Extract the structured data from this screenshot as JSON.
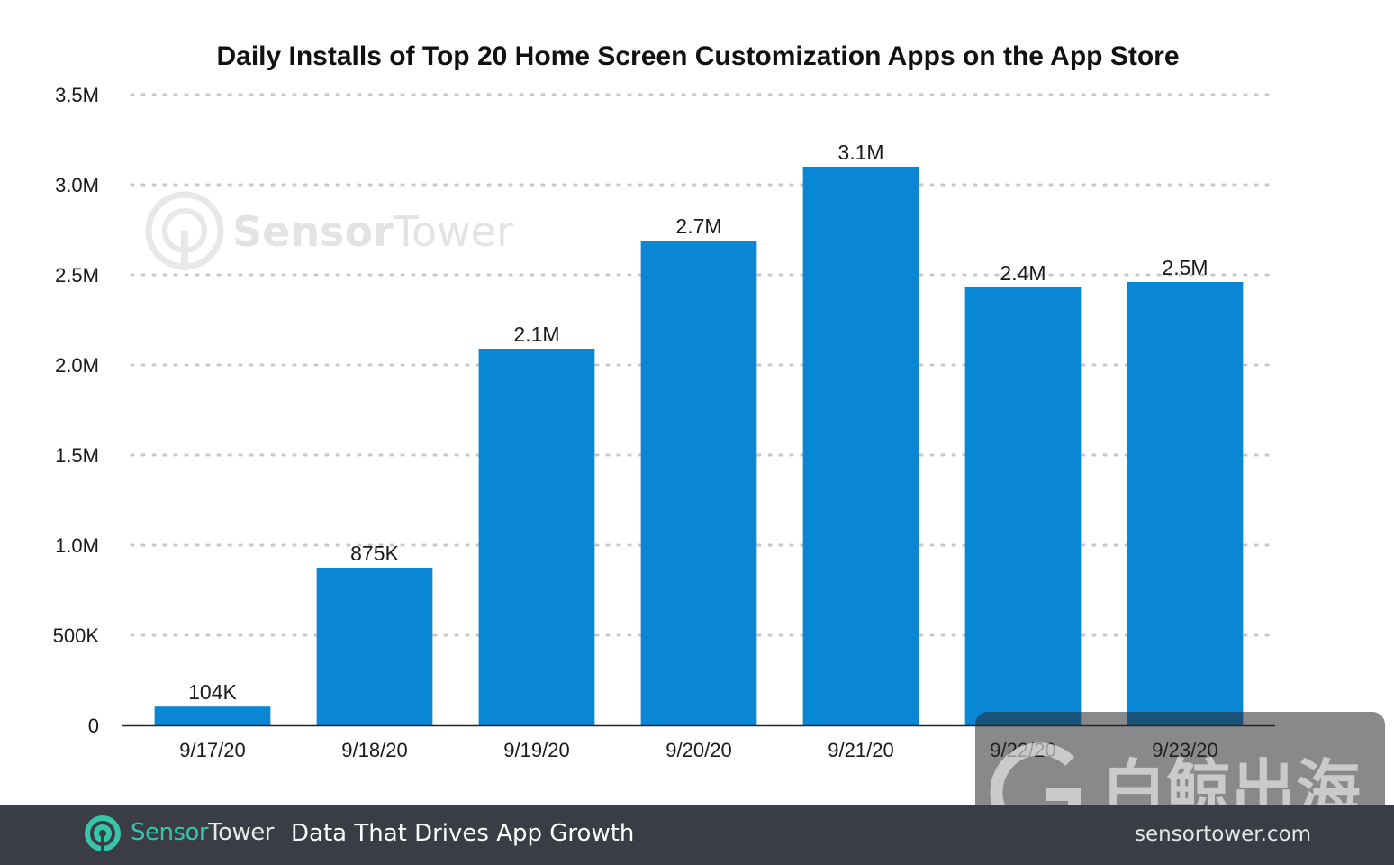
{
  "chart_data": {
    "type": "bar",
    "title": "Daily Installs of Top 20 Home Screen Customization Apps on the App Store",
    "categories": [
      "9/17/20",
      "9/18/20",
      "9/19/20",
      "9/20/20",
      "9/21/20",
      "9/22/20",
      "9/23/20"
    ],
    "values": [
      104000,
      875000,
      2090000,
      2690000,
      3100000,
      2430000,
      2460000
    ],
    "data_labels": [
      "104K",
      "875K",
      "2.1M",
      "2.7M",
      "3.1M",
      "2.4M",
      "2.5M"
    ],
    "ylim": [
      0,
      3500000
    ],
    "y_ticks": [
      {
        "value": 0,
        "label": "0"
      },
      {
        "value": 500000,
        "label": "500K"
      },
      {
        "value": 1000000,
        "label": "1.0M"
      },
      {
        "value": 1500000,
        "label": "1.5M"
      },
      {
        "value": 2000000,
        "label": "2.0M"
      },
      {
        "value": 2500000,
        "label": "2.5M"
      },
      {
        "value": 3000000,
        "label": "3.0M"
      },
      {
        "value": 3500000,
        "label": "3.5M"
      }
    ],
    "grid": true,
    "bar_color": "#0a87d4"
  },
  "watermark": {
    "brand_part1": "Sensor",
    "brand_part2": "Tower"
  },
  "footer": {
    "brand_part1": "Sensor",
    "brand_part2": "Tower",
    "tagline": "Data That Drives App Growth",
    "background": "#3a3d45",
    "brand_accent": "#37c6a9"
  },
  "site_watermark": {
    "chinese": "白鲸出海",
    "url": "sensortower.com"
  }
}
